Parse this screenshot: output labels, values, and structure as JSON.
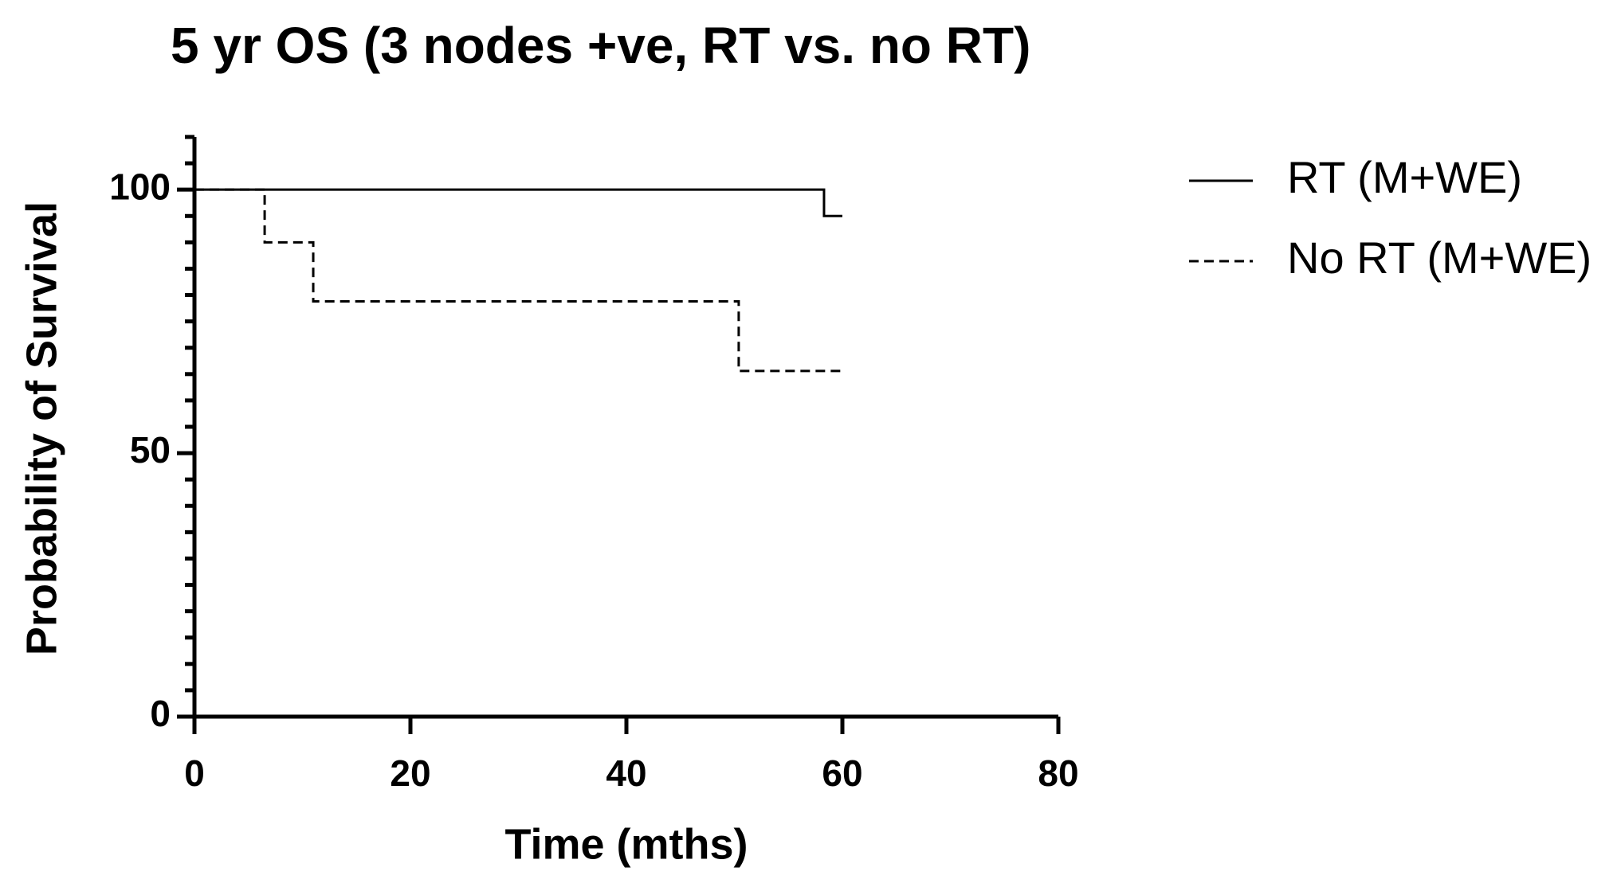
{
  "chart_data": {
    "type": "step",
    "title": "5 yr OS (3 nodes +ve, RT vs. no RT)",
    "x_label": "Time (mths)",
    "y_label": "Probability of Survival",
    "xlim": [
      0,
      80
    ],
    "xticks": [
      0,
      20,
      40,
      60,
      80
    ],
    "ylim": [
      0,
      110
    ],
    "yticks": [
      0,
      50,
      100
    ],
    "yminorticks": [
      5,
      10,
      15,
      20,
      25,
      30,
      35,
      40,
      45,
      55,
      60,
      65,
      70,
      75,
      80,
      85,
      90,
      95,
      105,
      110
    ],
    "legend": "right",
    "series": [
      {
        "name": "RT (M+WE)",
        "color": "#000000",
        "line_style": "solid",
        "x": [
          0,
          58.3,
          60
        ],
        "values": [
          100,
          95,
          95
        ]
      },
      {
        "name": "No RT (M+WE)",
        "color": "#000000",
        "line_style": "dashed",
        "x": [
          0,
          6.5,
          11,
          50.4,
          60
        ],
        "values": [
          100,
          90,
          78.8,
          65.6,
          65.6
        ]
      }
    ]
  }
}
